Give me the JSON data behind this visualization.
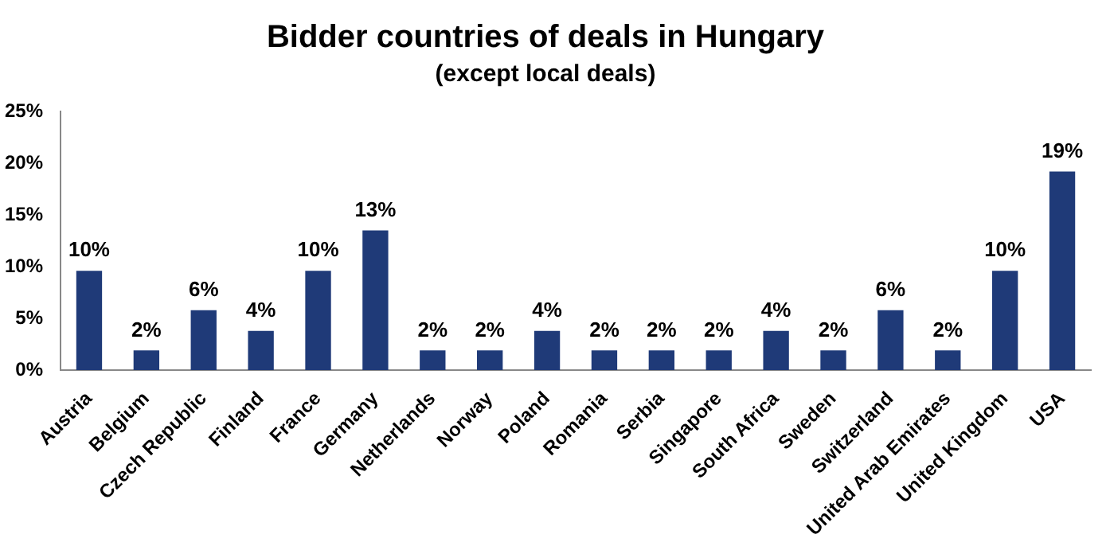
{
  "chart_data": {
    "type": "bar",
    "title": "Bidder countries of deals in Hungary",
    "subtitle": "(except local deals)",
    "categories": [
      "Austria",
      "Belgium",
      "Czech Republic",
      "Finland",
      "France",
      "Germany",
      "Netherlands",
      "Norway",
      "Poland",
      "Romania",
      "Serbia",
      "Singapore",
      "South Africa",
      "Sweden",
      "Switzerland",
      "United Arab Emirates",
      "United Kingdom",
      "USA"
    ],
    "values": [
      9.6,
      1.9,
      5.8,
      3.8,
      9.6,
      13.5,
      1.9,
      1.9,
      3.8,
      1.9,
      1.9,
      1.9,
      3.8,
      1.9,
      5.8,
      1.9,
      9.6,
      19.2
    ],
    "value_labels": [
      "10%",
      "2%",
      "6%",
      "4%",
      "10%",
      "13%",
      "2%",
      "2%",
      "4%",
      "2%",
      "2%",
      "2%",
      "4%",
      "2%",
      "6%",
      "2%",
      "10%",
      "19%"
    ],
    "color": "#1f3a78",
    "ylim": [
      0,
      25
    ],
    "yticks": [
      {
        "value": 0,
        "label": "0%"
      },
      {
        "value": 5,
        "label": "5%"
      },
      {
        "value": 10,
        "label": "10%"
      },
      {
        "value": 15,
        "label": "15%"
      },
      {
        "value": 20,
        "label": "20%"
      },
      {
        "value": 25,
        "label": "25%"
      }
    ],
    "grid": false,
    "legend": false
  }
}
